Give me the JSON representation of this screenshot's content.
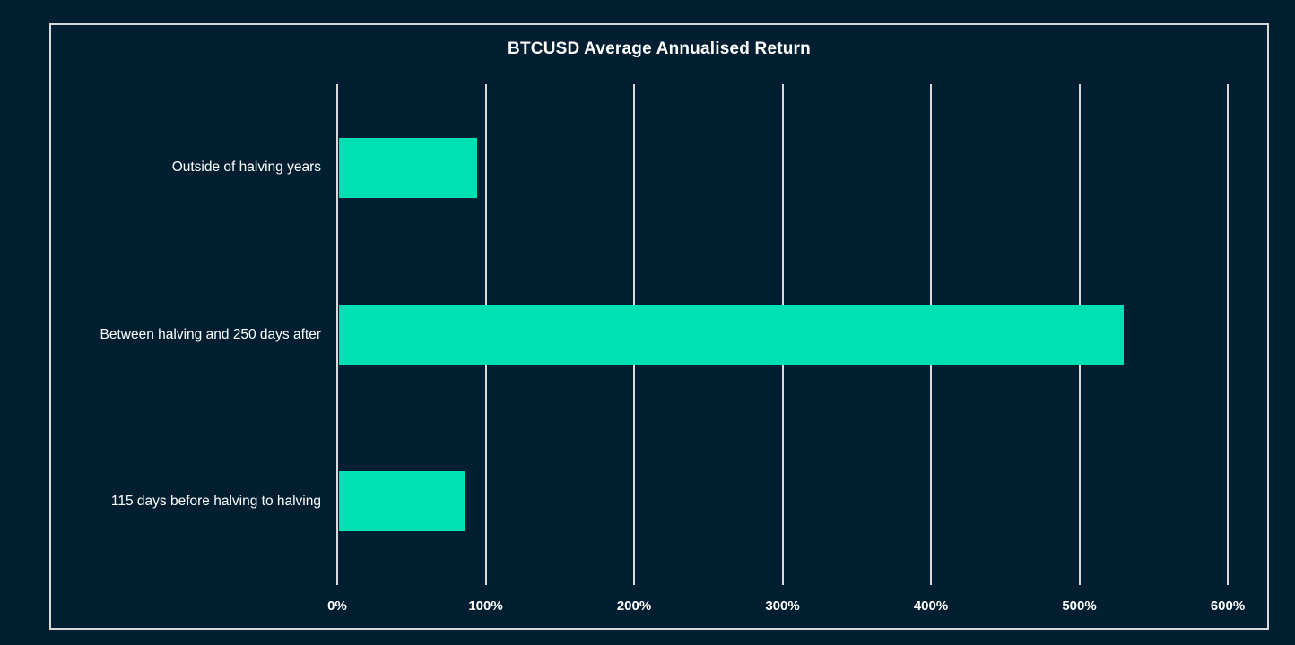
{
  "colors": {
    "background": "#021F31",
    "bar": "#00E0B2",
    "grid": "#D9D9D9",
    "frame_border": "#D9D9D9",
    "text": "#FFFFFF"
  },
  "chart_data": {
    "type": "bar",
    "orientation": "horizontal",
    "title": "BTCUSD Average Annualised Return",
    "categories": [
      "Outside of halving years",
      "Between halving and 250 days after",
      "115 days before halving to halving"
    ],
    "values": [
      94,
      530,
      86
    ],
    "value_unit": "%",
    "xlabel": "",
    "ylabel": "",
    "xlim": [
      0,
      600
    ],
    "x_ticks": [
      "0%",
      "100%",
      "200%",
      "300%",
      "400%",
      "500%",
      "600%"
    ],
    "x_tick_values": [
      0,
      100,
      200,
      300,
      400,
      500,
      600
    ],
    "grid": true,
    "legend": false
  }
}
